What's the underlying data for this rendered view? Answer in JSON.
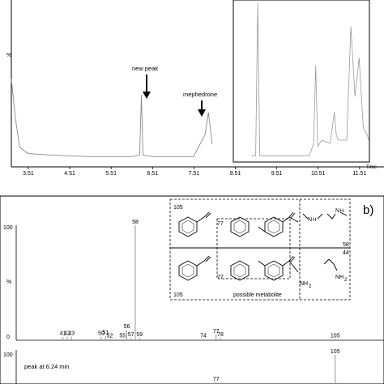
{
  "chart_data": [
    {
      "type": "line",
      "panel": "chromatogram",
      "ylabel": "%",
      "xlabel": "Time",
      "x_ticks": [
        "3.51",
        "4.51",
        "5.51",
        "6.51",
        "7.51",
        "8.51",
        "9.51",
        "10.51",
        "11.51"
      ],
      "xlim": [
        3.1,
        12.1
      ],
      "annotations": [
        {
          "label": "new peak",
          "x": 6.24
        },
        {
          "label": "mephedrone",
          "x": 7.86
        }
      ],
      "series": [
        {
          "values_note": "",
          "x": [
            3.1,
            3.2,
            3.3,
            3.5,
            4.0,
            5.0,
            6.0,
            6.2,
            6.24,
            6.28,
            6.5,
            7.5,
            7.78,
            7.86,
            7.95,
            8.5,
            9.0
          ],
          "y": [
            55,
            30,
            12,
            8,
            7,
            6,
            6,
            7,
            45,
            7,
            6,
            6,
            20,
            34,
            14,
            6,
            6
          ]
        }
      ],
      "inset": {
        "x": [
          8.9,
          9.0,
          9.05,
          9.1,
          10.3,
          10.4,
          10.45,
          10.5,
          10.6,
          10.8,
          10.9,
          10.95,
          11.0,
          11.2,
          11.3,
          11.4,
          11.5,
          11.6,
          11.7,
          12.0
        ],
        "y": [
          2,
          2,
          100,
          2,
          2,
          10,
          60,
          8,
          12,
          10,
          30,
          15,
          12,
          12,
          85,
          40,
          65,
          20,
          15,
          12
        ]
      }
    },
    {
      "type": "bar",
      "panel": "mass-spectrum",
      "tag": "b)",
      "ylabel": "%",
      "y_ticks": [
        "100",
        "0"
      ],
      "ylim": [
        0,
        100
      ],
      "mz_label_max": "105",
      "spectrum_top": {
        "mz": [
          41,
          42,
          43,
          50,
          51,
          52,
          55,
          56,
          57,
          58,
          59,
          74,
          77,
          78,
          105
        ],
        "intensity": [
          3,
          3,
          3,
          3,
          4,
          1,
          1,
          9,
          2,
          100,
          2,
          1,
          5,
          2,
          1
        ]
      },
      "spectrum_bottom": {
        "title": "peak at 6.24 min",
        "y_ticks": [
          "100"
        ],
        "mz": [
          77,
          105
        ],
        "intensity": [
          45,
          100
        ]
      },
      "structure_box": {
        "top_left_label": "105",
        "top_mid_label": "77",
        "right_labels": [
          "58",
          "44"
        ],
        "bottom_mid_label": "77",
        "bottom_left_label": "105",
        "caption": "possible metabolite",
        "amine_top": [
          "N",
          "H",
          "N",
          "H"
        ],
        "amine_bottom": [
          "NH",
          "2",
          "NH",
          "2"
        ]
      }
    }
  ]
}
